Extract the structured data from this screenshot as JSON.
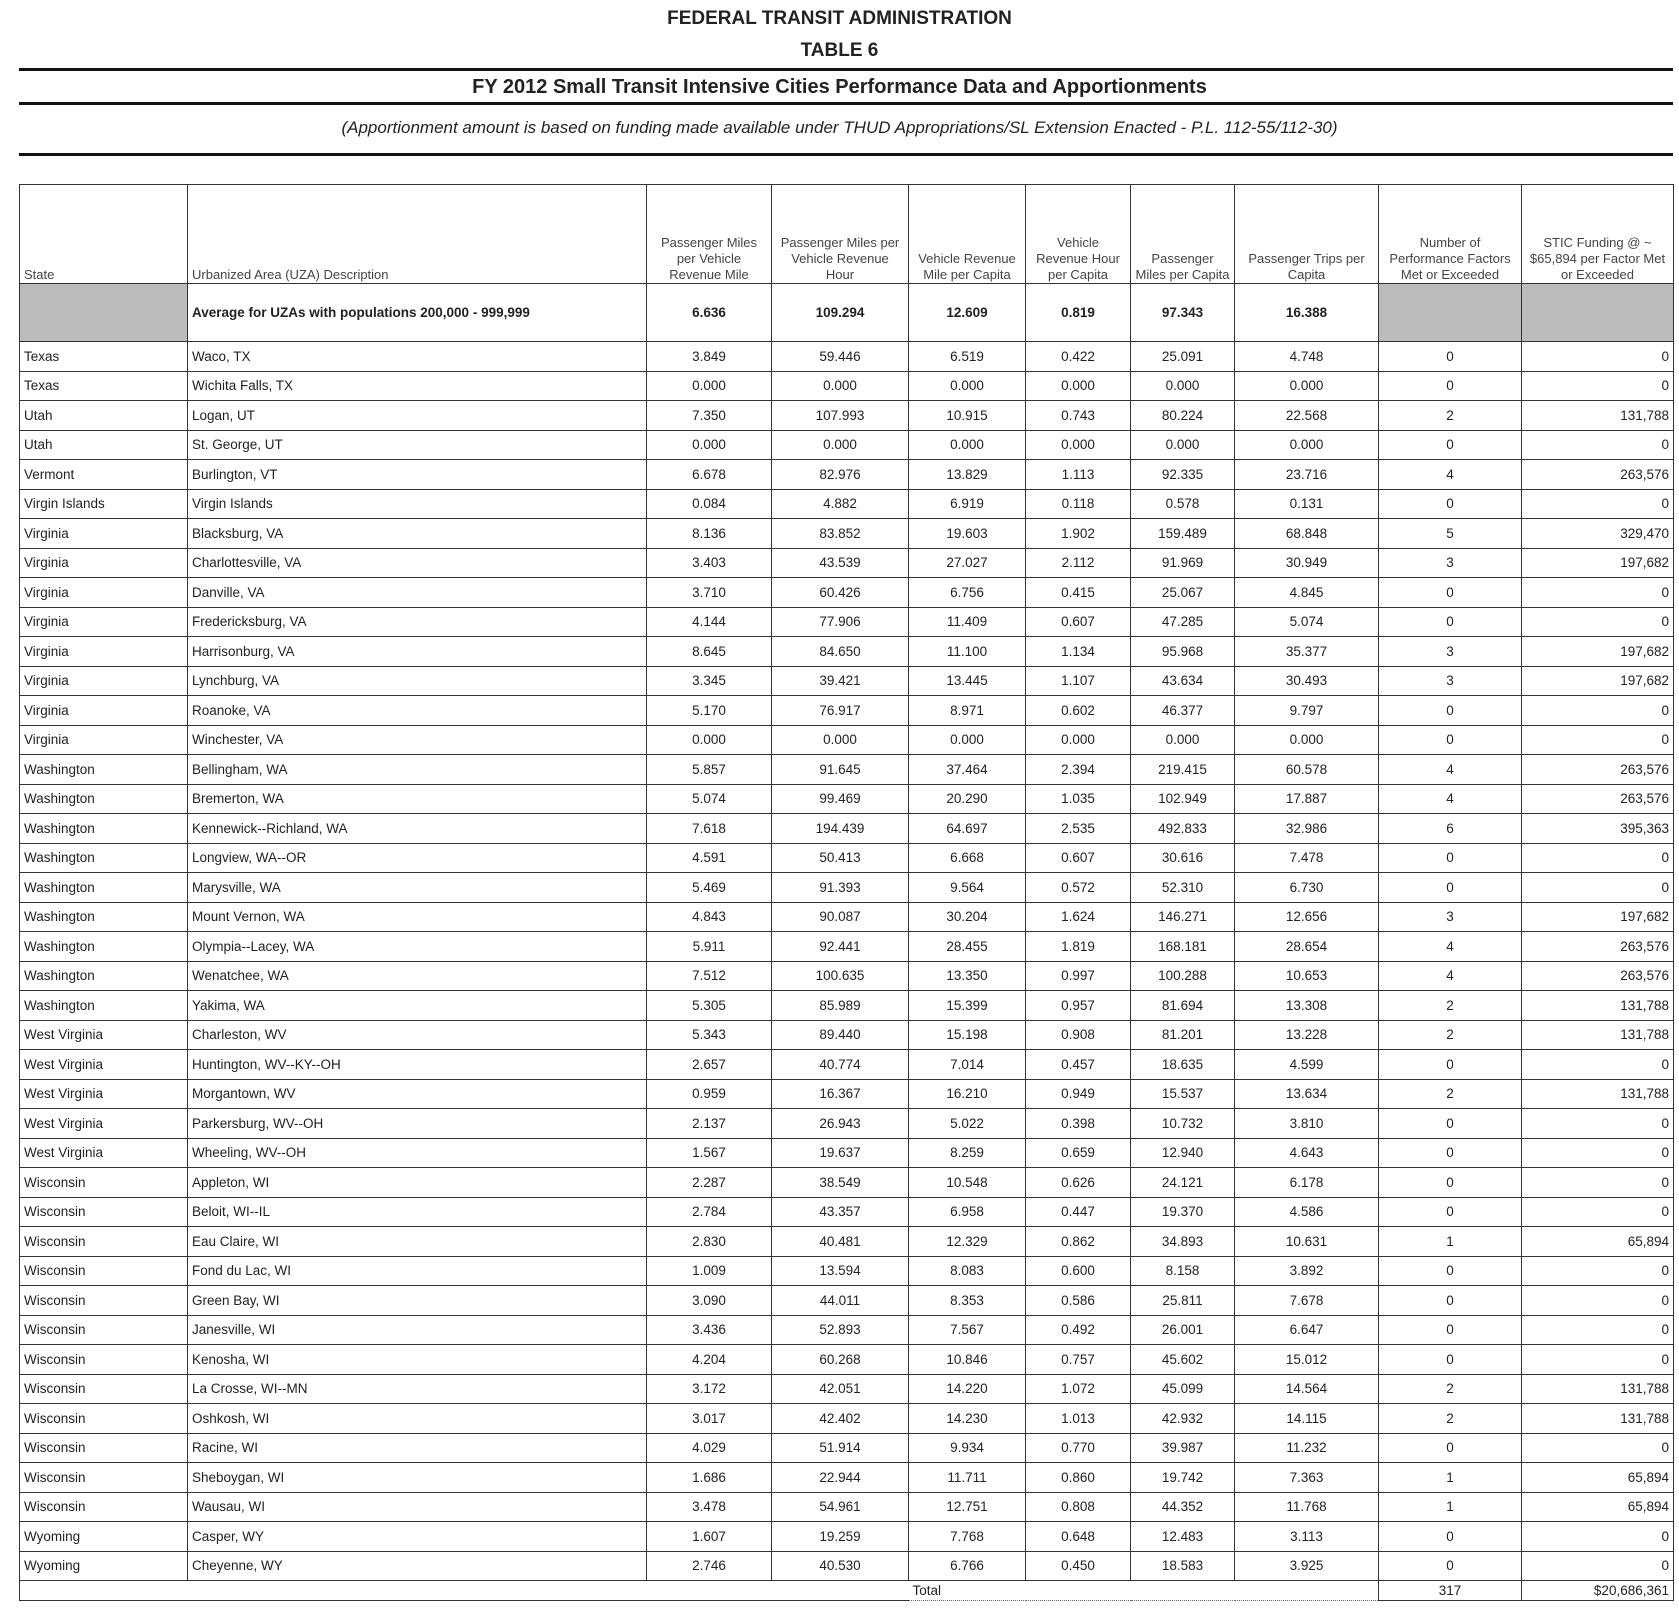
{
  "header": {
    "agency": "FEDERAL TRANSIT ADMINISTRATION",
    "table_number": "TABLE 6",
    "title": "FY 2012 Small Transit Intensive Cities Performance Data and Apportionments",
    "subtitle": "(Apportionment amount is based on funding made available under THUD Appropriations/SL Extension Enacted - P.L. 112-55/112-30)"
  },
  "table": {
    "columns": [
      "State",
      "Urbanized Area (UZA) Description",
      "Passenger Miles per Vehicle Revenue Mile",
      "Passenger Miles per Vehicle Revenue Hour",
      "Vehicle Revenue Mile per Capita",
      "Vehicle Revenue Hour per Capita",
      "Passenger Miles per Capita",
      "Passenger Trips per Capita",
      "Number of Performance Factors Met or Exceeded",
      "STIC Funding @ ~ $65,894 per Factor Met or Exceeded"
    ],
    "average": {
      "label": "Average for UZAs with populations 200,000 - 999,999",
      "values": [
        "6.636",
        "109.294",
        "12.609",
        "0.819",
        "97.343",
        "16.388"
      ]
    },
    "rows": [
      [
        "Texas",
        "Waco, TX",
        "3.849",
        "59.446",
        "6.519",
        "0.422",
        "25.091",
        "4.748",
        "0",
        "0"
      ],
      [
        "Texas",
        "Wichita Falls, TX",
        "0.000",
        "0.000",
        "0.000",
        "0.000",
        "0.000",
        "0.000",
        "0",
        "0"
      ],
      [
        "Utah",
        "Logan, UT",
        "7.350",
        "107.993",
        "10.915",
        "0.743",
        "80.224",
        "22.568",
        "2",
        "131,788"
      ],
      [
        "Utah",
        "St. George, UT",
        "0.000",
        "0.000",
        "0.000",
        "0.000",
        "0.000",
        "0.000",
        "0",
        "0"
      ],
      [
        "Vermont",
        "Burlington, VT",
        "6.678",
        "82.976",
        "13.829",
        "1.113",
        "92.335",
        "23.716",
        "4",
        "263,576"
      ],
      [
        "Virgin Islands",
        "Virgin Islands",
        "0.084",
        "4.882",
        "6.919",
        "0.118",
        "0.578",
        "0.131",
        "0",
        "0"
      ],
      [
        "Virginia",
        "Blacksburg, VA",
        "8.136",
        "83.852",
        "19.603",
        "1.902",
        "159.489",
        "68.848",
        "5",
        "329,470"
      ],
      [
        "Virginia",
        "Charlottesville, VA",
        "3.403",
        "43.539",
        "27.027",
        "2.112",
        "91.969",
        "30.949",
        "3",
        "197,682"
      ],
      [
        "Virginia",
        "Danville, VA",
        "3.710",
        "60.426",
        "6.756",
        "0.415",
        "25.067",
        "4.845",
        "0",
        "0"
      ],
      [
        "Virginia",
        "Fredericksburg, VA",
        "4.144",
        "77.906",
        "11.409",
        "0.607",
        "47.285",
        "5.074",
        "0",
        "0"
      ],
      [
        "Virginia",
        "Harrisonburg, VA",
        "8.645",
        "84.650",
        "11.100",
        "1.134",
        "95.968",
        "35.377",
        "3",
        "197,682"
      ],
      [
        "Virginia",
        "Lynchburg, VA",
        "3.345",
        "39.421",
        "13.445",
        "1.107",
        "43.634",
        "30.493",
        "3",
        "197,682"
      ],
      [
        "Virginia",
        "Roanoke, VA",
        "5.170",
        "76.917",
        "8.971",
        "0.602",
        "46.377",
        "9.797",
        "0",
        "0"
      ],
      [
        "Virginia",
        "Winchester, VA",
        "0.000",
        "0.000",
        "0.000",
        "0.000",
        "0.000",
        "0.000",
        "0",
        "0"
      ],
      [
        "Washington",
        "Bellingham, WA",
        "5.857",
        "91.645",
        "37.464",
        "2.394",
        "219.415",
        "60.578",
        "4",
        "263,576"
      ],
      [
        "Washington",
        "Bremerton, WA",
        "5.074",
        "99.469",
        "20.290",
        "1.035",
        "102.949",
        "17.887",
        "4",
        "263,576"
      ],
      [
        "Washington",
        "Kennewick--Richland, WA",
        "7.618",
        "194.439",
        "64.697",
        "2.535",
        "492.833",
        "32.986",
        "6",
        "395,363"
      ],
      [
        "Washington",
        "Longview, WA--OR",
        "4.591",
        "50.413",
        "6.668",
        "0.607",
        "30.616",
        "7.478",
        "0",
        "0"
      ],
      [
        "Washington",
        "Marysville, WA",
        "5.469",
        "91.393",
        "9.564",
        "0.572",
        "52.310",
        "6.730",
        "0",
        "0"
      ],
      [
        "Washington",
        "Mount Vernon, WA",
        "4.843",
        "90.087",
        "30.204",
        "1.624",
        "146.271",
        "12.656",
        "3",
        "197,682"
      ],
      [
        "Washington",
        "Olympia--Lacey, WA",
        "5.911",
        "92.441",
        "28.455",
        "1.819",
        "168.181",
        "28.654",
        "4",
        "263,576"
      ],
      [
        "Washington",
        "Wenatchee, WA",
        "7.512",
        "100.635",
        "13.350",
        "0.997",
        "100.288",
        "10.653",
        "4",
        "263,576"
      ],
      [
        "Washington",
        "Yakima, WA",
        "5.305",
        "85.989",
        "15.399",
        "0.957",
        "81.694",
        "13.308",
        "2",
        "131,788"
      ],
      [
        "West Virginia",
        "Charleston, WV",
        "5.343",
        "89.440",
        "15.198",
        "0.908",
        "81.201",
        "13.228",
        "2",
        "131,788"
      ],
      [
        "West Virginia",
        "Huntington, WV--KY--OH",
        "2.657",
        "40.774",
        "7.014",
        "0.457",
        "18.635",
        "4.599",
        "0",
        "0"
      ],
      [
        "West Virginia",
        "Morgantown, WV",
        "0.959",
        "16.367",
        "16.210",
        "0.949",
        "15.537",
        "13.634",
        "2",
        "131,788"
      ],
      [
        "West Virginia",
        "Parkersburg, WV--OH",
        "2.137",
        "26.943",
        "5.022",
        "0.398",
        "10.732",
        "3.810",
        "0",
        "0"
      ],
      [
        "West Virginia",
        "Wheeling, WV--OH",
        "1.567",
        "19.637",
        "8.259",
        "0.659",
        "12.940",
        "4.643",
        "0",
        "0"
      ],
      [
        "Wisconsin",
        "Appleton, WI",
        "2.287",
        "38.549",
        "10.548",
        "0.626",
        "24.121",
        "6.178",
        "0",
        "0"
      ],
      [
        "Wisconsin",
        "Beloit, WI--IL",
        "2.784",
        "43.357",
        "6.958",
        "0.447",
        "19.370",
        "4.586",
        "0",
        "0"
      ],
      [
        "Wisconsin",
        "Eau Claire, WI",
        "2.830",
        "40.481",
        "12.329",
        "0.862",
        "34.893",
        "10.631",
        "1",
        "65,894"
      ],
      [
        "Wisconsin",
        "Fond du Lac, WI",
        "1.009",
        "13.594",
        "8.083",
        "0.600",
        "8.158",
        "3.892",
        "0",
        "0"
      ],
      [
        "Wisconsin",
        "Green Bay, WI",
        "3.090",
        "44.011",
        "8.353",
        "0.586",
        "25.811",
        "7.678",
        "0",
        "0"
      ],
      [
        "Wisconsin",
        "Janesville, WI",
        "3.436",
        "52.893",
        "7.567",
        "0.492",
        "26.001",
        "6.647",
        "0",
        "0"
      ],
      [
        "Wisconsin",
        "Kenosha, WI",
        "4.204",
        "60.268",
        "10.846",
        "0.757",
        "45.602",
        "15.012",
        "0",
        "0"
      ],
      [
        "Wisconsin",
        "La Crosse, WI--MN",
        "3.172",
        "42.051",
        "14.220",
        "1.072",
        "45.099",
        "14.564",
        "2",
        "131,788"
      ],
      [
        "Wisconsin",
        "Oshkosh, WI",
        "3.017",
        "42.402",
        "14.230",
        "1.013",
        "42.932",
        "14.115",
        "2",
        "131,788"
      ],
      [
        "Wisconsin",
        "Racine, WI",
        "4.029",
        "51.914",
        "9.934",
        "0.770",
        "39.987",
        "11.232",
        "0",
        "0"
      ],
      [
        "Wisconsin",
        "Sheboygan, WI",
        "1.686",
        "22.944",
        "11.711",
        "0.860",
        "19.742",
        "7.363",
        "1",
        "65,894"
      ],
      [
        "Wisconsin",
        "Wausau, WI",
        "3.478",
        "54.961",
        "12.751",
        "0.808",
        "44.352",
        "11.768",
        "1",
        "65,894"
      ],
      [
        "Wyoming",
        "Casper, WY",
        "1.607",
        "19.259",
        "7.768",
        "0.648",
        "12.483",
        "3.113",
        "0",
        "0"
      ],
      [
        "Wyoming",
        "Cheyenne, WY",
        "2.746",
        "40.530",
        "6.766",
        "0.450",
        "18.583",
        "3.925",
        "0",
        "0"
      ]
    ],
    "total": {
      "label": "Total",
      "factors": "317",
      "funding": "$20,686,361"
    }
  }
}
